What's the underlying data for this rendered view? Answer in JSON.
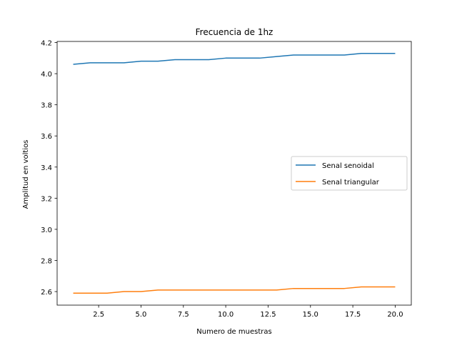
{
  "chart_data": {
    "type": "line",
    "title": "Frecuencia de 1hz",
    "xlabel": "Numero de muestras",
    "ylabel": "Amplitud en voltios",
    "xlim": [
      0.05,
      20.95
    ],
    "ylim": [
      2.513,
      4.207
    ],
    "xticks": [
      2.5,
      5.0,
      7.5,
      10.0,
      12.5,
      15.0,
      17.5,
      20.0
    ],
    "xtick_labels": [
      "2.5",
      "5.0",
      "7.5",
      "10.0",
      "12.5",
      "15.0",
      "17.5",
      "20.0"
    ],
    "yticks": [
      2.6,
      2.8,
      3.0,
      3.2,
      3.4,
      3.6,
      3.8,
      4.0,
      4.2
    ],
    "ytick_labels": [
      "2.6",
      "2.8",
      "3.0",
      "3.2",
      "3.4",
      "3.6",
      "3.8",
      "4.0",
      "4.2"
    ],
    "grid": false,
    "legend_position": "center-right",
    "x": [
      1,
      2,
      3,
      4,
      5,
      6,
      7,
      8,
      9,
      10,
      11,
      12,
      13,
      14,
      15,
      16,
      17,
      18,
      19,
      20
    ],
    "series": [
      {
        "name": "Senal senoidal",
        "color": "#1f77b4",
        "values": [
          4.06,
          4.07,
          4.07,
          4.07,
          4.08,
          4.08,
          4.09,
          4.09,
          4.09,
          4.1,
          4.1,
          4.1,
          4.11,
          4.12,
          4.12,
          4.12,
          4.12,
          4.13,
          4.13,
          4.13
        ]
      },
      {
        "name": "Senal triangular",
        "color": "#ff7f0e",
        "values": [
          2.59,
          2.59,
          2.59,
          2.6,
          2.6,
          2.61,
          2.61,
          2.61,
          2.61,
          2.61,
          2.61,
          2.61,
          2.61,
          2.62,
          2.62,
          2.62,
          2.62,
          2.63,
          2.63,
          2.63
        ]
      }
    ]
  }
}
